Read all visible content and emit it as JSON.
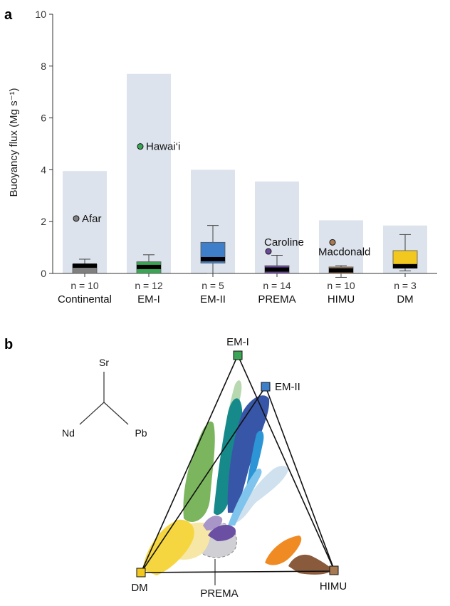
{
  "panel_a_label": "a",
  "panel_b_label": "b",
  "chart_data": [
    {
      "type": "box",
      "ylabel": "Buoyancy flux (Mg s⁻¹)",
      "ylim": [
        0,
        10
      ],
      "yticks": [
        0,
        2,
        4,
        6,
        8,
        10
      ],
      "categories": [
        "Continental",
        "EM-I",
        "EM-II",
        "PREMA",
        "HIMU",
        "DM"
      ],
      "n_labels": [
        "n = 10",
        "n = 12",
        "n = 5",
        "n = 14",
        "n = 10",
        "n = 3"
      ],
      "range_max": [
        3.95,
        7.7,
        4.0,
        3.55,
        2.05,
        1.85
      ],
      "boxes": [
        {
          "whisker_low": 0.0,
          "q1": 0.0,
          "median": 0.3,
          "q3": 0.35,
          "whisker_high": 0.55,
          "color": "#808080"
        },
        {
          "whisker_low": 0.0,
          "q1": 0.0,
          "median": 0.25,
          "q3": 0.45,
          "whisker_high": 0.72,
          "color": "#3aa655"
        },
        {
          "whisker_low": 0.0,
          "q1": 0.4,
          "median": 0.55,
          "q3": 1.2,
          "whisker_high": 1.85,
          "color": "#3f7ec8"
        },
        {
          "whisker_low": 0.0,
          "q1": 0.0,
          "median": 0.15,
          "q3": 0.3,
          "whisker_high": 0.7,
          "color": "#6a4a9a"
        },
        {
          "whisker_low": -0.15,
          "q1": 0.0,
          "median": 0.12,
          "q3": 0.25,
          "whisker_high": 0.3,
          "color": "#a87a52"
        },
        {
          "whisker_low": 0.1,
          "q1": 0.2,
          "median": 0.28,
          "q3": 0.88,
          "whisker_high": 1.5,
          "color": "#f2c81e"
        }
      ],
      "outliers": [
        {
          "category_index": 0,
          "value": 2.12,
          "label": "Afar",
          "color": "#808080"
        },
        {
          "category_index": 1,
          "value": 4.9,
          "label": "Hawai‘i",
          "color": "#3aa655"
        },
        {
          "category_index": 3,
          "value": 0.85,
          "label": "Caroline",
          "color": "#6a4a9a"
        },
        {
          "category_index": 4,
          "value": 1.2,
          "label": "Macdonald",
          "color": "#a87a52"
        }
      ]
    },
    {
      "type": "ternary",
      "axes": {
        "top": "Sr",
        "left": "Nd",
        "right": "Pb"
      },
      "end_members": [
        {
          "name": "EM-I",
          "color": "#3aa655"
        },
        {
          "name": "EM-II",
          "color": "#3f7ec8"
        },
        {
          "name": "DM",
          "color": "#f2c81e"
        },
        {
          "name": "HIMU",
          "color": "#a87a52"
        }
      ],
      "region_label": "PREMA"
    }
  ]
}
